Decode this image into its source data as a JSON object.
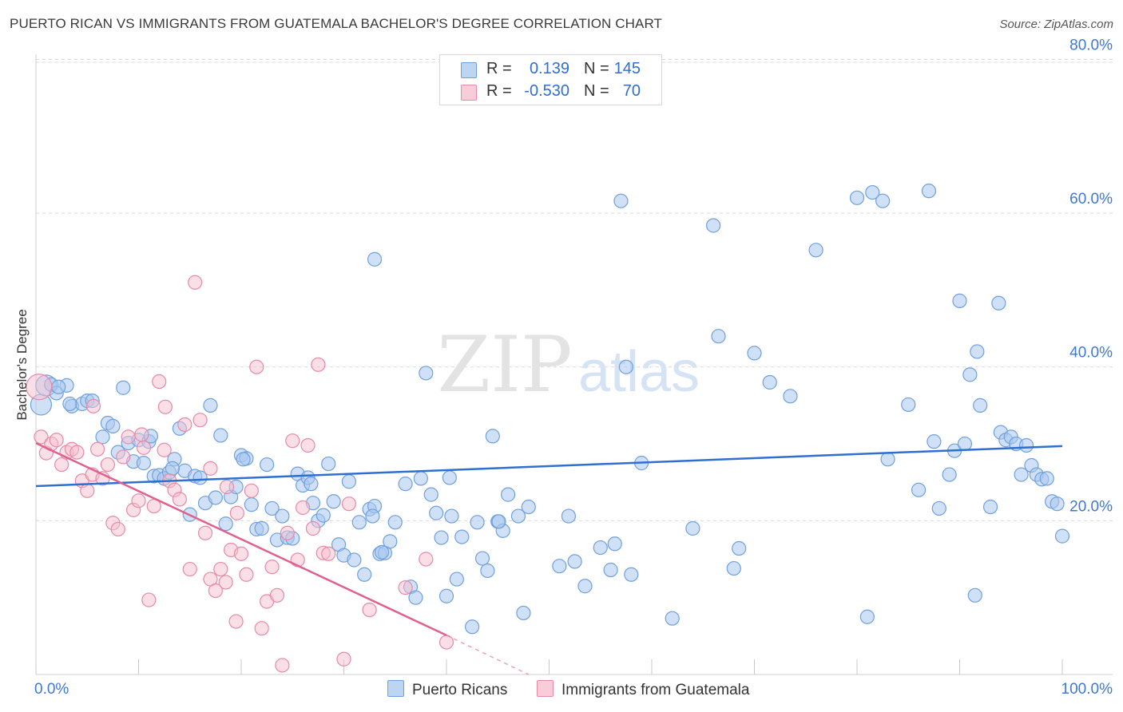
{
  "header": {
    "title": "PUERTO RICAN VS IMMIGRANTS FROM GUATEMALA BACHELOR'S DEGREE CORRELATION CHART",
    "source": "Source: ZipAtlas.com"
  },
  "legend": {
    "rows": [
      {
        "r_label": "R =",
        "r_value": "0.139",
        "n_label": "N =",
        "n_value": "145"
      },
      {
        "r_label": "R =",
        "r_value": "-0.530",
        "n_label": "N =",
        "n_value": "70"
      }
    ]
  },
  "bottom_legend": {
    "series1": "Puerto Ricans",
    "series2": "Immigrants from Guatemala"
  },
  "watermark": {
    "zip": "ZIP",
    "atlas": "atlas"
  },
  "colors": {
    "blue_fill": "#a9c8f0",
    "blue_stroke": "#6fa0de",
    "blue_line": "#2f6fd0",
    "pink_fill": "#f6bfd0",
    "pink_stroke": "#e889a8",
    "pink_line": "#e0608e",
    "grid": "#d9d9d9",
    "axis_text": "#3d78d6"
  },
  "chart_data": {
    "type": "scatter",
    "title": "PUERTO RICAN VS IMMIGRANTS FROM GUATEMALA BACHELOR'S DEGREE CORRELATION CHART",
    "xlabel": "",
    "ylabel": "Bachelor's Degree",
    "xlim": [
      0,
      100
    ],
    "ylim": [
      0,
      81.5
    ],
    "x_tick_labels": [
      "0.0%",
      "100.0%"
    ],
    "y_ticks": [
      20,
      40,
      60,
      80
    ],
    "y_tick_labels": [
      "20.0%",
      "40.0%",
      "60.0%",
      "80.0%"
    ],
    "series": [
      {
        "name": "Puerto Ricans",
        "r": 0.139,
        "n": 145,
        "trend": {
          "x": [
            0,
            100
          ],
          "y": [
            24.5,
            29.7
          ]
        },
        "points": [
          [
            0.5,
            35.1
          ],
          [
            1.0,
            37.6
          ],
          [
            1.5,
            37.7
          ],
          [
            2.0,
            36.6
          ],
          [
            3.0,
            37.6
          ],
          [
            3.5,
            34.9
          ],
          [
            4.5,
            35.2
          ],
          [
            5.0,
            35.6
          ],
          [
            5.5,
            35.6
          ],
          [
            6.5,
            30.9
          ],
          [
            7.0,
            32.7
          ],
          [
            7.5,
            32.3
          ],
          [
            8.0,
            28.9
          ],
          [
            8.5,
            37.3
          ],
          [
            9.0,
            30.1
          ],
          [
            9.5,
            27.7
          ],
          [
            10.0,
            30.5
          ],
          [
            10.5,
            27.5
          ],
          [
            11.0,
            30.3
          ],
          [
            11.5,
            25.8
          ],
          [
            12.0,
            25.9
          ],
          [
            12.5,
            25.5
          ],
          [
            13.0,
            26.3
          ],
          [
            13.5,
            28.0
          ],
          [
            14.0,
            32.0
          ],
          [
            14.5,
            26.5
          ],
          [
            15.0,
            20.8
          ],
          [
            15.5,
            25.8
          ],
          [
            16.0,
            25.6
          ],
          [
            16.5,
            22.3
          ],
          [
            17.0,
            35.0
          ],
          [
            17.5,
            23.0
          ],
          [
            18.0,
            31.1
          ],
          [
            18.5,
            19.6
          ],
          [
            19.0,
            23.1
          ],
          [
            19.5,
            24.4
          ],
          [
            20.0,
            28.5
          ],
          [
            20.5,
            28.1
          ],
          [
            21.0,
            22.1
          ],
          [
            21.5,
            18.9
          ],
          [
            22.0,
            19.0
          ],
          [
            22.5,
            27.3
          ],
          [
            23.0,
            21.6
          ],
          [
            23.5,
            17.5
          ],
          [
            24.0,
            20.6
          ],
          [
            24.5,
            17.8
          ],
          [
            25.0,
            17.7
          ],
          [
            25.5,
            26.1
          ],
          [
            26.0,
            24.6
          ],
          [
            26.5,
            25.6
          ],
          [
            27.0,
            22.3
          ],
          [
            27.5,
            20.0
          ],
          [
            28.0,
            20.7
          ],
          [
            28.5,
            27.4
          ],
          [
            29.0,
            22.5
          ],
          [
            29.5,
            16.9
          ],
          [
            30.0,
            15.5
          ],
          [
            30.5,
            25.1
          ],
          [
            31.0,
            14.9
          ],
          [
            31.5,
            19.8
          ],
          [
            32.0,
            13.0
          ],
          [
            32.5,
            21.5
          ],
          [
            33.0,
            21.9
          ],
          [
            33.5,
            15.7
          ],
          [
            34.0,
            15.8
          ],
          [
            34.5,
            17.3
          ],
          [
            35.0,
            19.8
          ],
          [
            36.0,
            24.8
          ],
          [
            36.5,
            11.4
          ],
          [
            37.0,
            10.0
          ],
          [
            37.5,
            25.5
          ],
          [
            38.0,
            39.2
          ],
          [
            38.5,
            23.4
          ],
          [
            39.0,
            21.0
          ],
          [
            39.5,
            17.8
          ],
          [
            40.0,
            10.2
          ],
          [
            40.5,
            20.6
          ],
          [
            41.0,
            12.4
          ],
          [
            41.5,
            17.9
          ],
          [
            42.5,
            6.2
          ],
          [
            43.0,
            19.8
          ],
          [
            43.5,
            15.1
          ],
          [
            44.0,
            13.5
          ],
          [
            44.5,
            31.0
          ],
          [
            45.0,
            19.9
          ],
          [
            45.5,
            18.7
          ],
          [
            46.0,
            23.4
          ],
          [
            47.0,
            20.6
          ],
          [
            47.5,
            8.0
          ],
          [
            48.0,
            21.8
          ],
          [
            51.0,
            14.1
          ],
          [
            52.5,
            14.7
          ],
          [
            53.5,
            11.5
          ],
          [
            55.0,
            16.5
          ],
          [
            56.0,
            13.6
          ],
          [
            57.0,
            61.6
          ],
          [
            57.5,
            40.0
          ],
          [
            58.0,
            13.0
          ],
          [
            59.0,
            27.5
          ],
          [
            62.0,
            7.3
          ],
          [
            64.0,
            19.0
          ],
          [
            66.0,
            58.4
          ],
          [
            66.5,
            44.0
          ],
          [
            68.0,
            13.8
          ],
          [
            68.5,
            16.4
          ],
          [
            70.0,
            41.8
          ],
          [
            71.5,
            38.0
          ],
          [
            73.5,
            36.2
          ],
          [
            76.0,
            55.2
          ],
          [
            80.0,
            62.0
          ],
          [
            81.0,
            7.5
          ],
          [
            81.5,
            62.7
          ],
          [
            82.5,
            61.6
          ],
          [
            83.0,
            28.0
          ],
          [
            85.0,
            35.1
          ],
          [
            86.0,
            24.0
          ],
          [
            87.0,
            62.9
          ],
          [
            87.5,
            30.3
          ],
          [
            88.0,
            21.6
          ],
          [
            89.0,
            26.0
          ],
          [
            89.5,
            29.1
          ],
          [
            90.0,
            48.6
          ],
          [
            90.5,
            30.0
          ],
          [
            91.0,
            39.0
          ],
          [
            91.5,
            10.3
          ],
          [
            91.7,
            42.0
          ],
          [
            92.0,
            35.0
          ],
          [
            93.0,
            21.8
          ],
          [
            93.8,
            48.3
          ],
          [
            94.0,
            31.5
          ],
          [
            94.5,
            30.5
          ],
          [
            95.0,
            30.9
          ],
          [
            95.5,
            30.0
          ],
          [
            96.0,
            26.0
          ],
          [
            96.5,
            29.8
          ],
          [
            97.0,
            27.2
          ],
          [
            97.5,
            26.0
          ],
          [
            98.0,
            25.4
          ],
          [
            98.5,
            25.5
          ],
          [
            99.0,
            22.5
          ],
          [
            99.5,
            22.2
          ],
          [
            100.0,
            18.0
          ],
          [
            2.2,
            37.4
          ],
          [
            3.3,
            35.2
          ],
          [
            11.2,
            31.0
          ],
          [
            13.3,
            26.8
          ],
          [
            20.2,
            28.0
          ],
          [
            26.8,
            24.8
          ],
          [
            32.8,
            20.6
          ],
          [
            40.3,
            25.6
          ],
          [
            33.7,
            15.9
          ],
          [
            33.0,
            54.0
          ],
          [
            45.1,
            19.9
          ],
          [
            51.9,
            20.6
          ],
          [
            56.4,
            17.0
          ]
        ]
      },
      {
        "name": "Immigrants from Guatemala",
        "r": -0.53,
        "n": 70,
        "trend": {
          "x": [
            0,
            40
          ],
          "y": [
            30.1,
            5.1
          ]
        },
        "trend_dashed": {
          "x": [
            40,
            48
          ],
          "y": [
            5.1,
            0
          ]
        },
        "points": [
          [
            0.3,
            37.4
          ],
          [
            0.5,
            30.9
          ],
          [
            1.0,
            28.8
          ],
          [
            1.5,
            30.0
          ],
          [
            2.0,
            30.5
          ],
          [
            2.5,
            27.3
          ],
          [
            3.0,
            28.9
          ],
          [
            3.5,
            29.3
          ],
          [
            4.0,
            28.9
          ],
          [
            4.5,
            25.2
          ],
          [
            5.0,
            23.9
          ],
          [
            5.5,
            26.0
          ],
          [
            6.0,
            29.3
          ],
          [
            6.5,
            25.5
          ],
          [
            7.0,
            27.3
          ],
          [
            7.5,
            19.7
          ],
          [
            8.0,
            18.9
          ],
          [
            8.5,
            28.3
          ],
          [
            9.0,
            30.9
          ],
          [
            9.5,
            21.4
          ],
          [
            10.0,
            22.6
          ],
          [
            10.5,
            29.5
          ],
          [
            11.0,
            9.7
          ],
          [
            11.5,
            21.9
          ],
          [
            12.0,
            38.1
          ],
          [
            12.5,
            29.2
          ],
          [
            13.0,
            25.2
          ],
          [
            13.5,
            24.0
          ],
          [
            14.0,
            22.8
          ],
          [
            14.5,
            32.5
          ],
          [
            15.0,
            13.7
          ],
          [
            15.5,
            51.0
          ],
          [
            16.0,
            33.1
          ],
          [
            16.5,
            18.4
          ],
          [
            17.0,
            12.4
          ],
          [
            17.5,
            10.9
          ],
          [
            18.0,
            13.7
          ],
          [
            18.5,
            12.0
          ],
          [
            19.0,
            16.2
          ],
          [
            19.5,
            6.9
          ],
          [
            20.0,
            15.7
          ],
          [
            20.5,
            13.0
          ],
          [
            21.0,
            23.9
          ],
          [
            21.5,
            40.0
          ],
          [
            22.0,
            6.0
          ],
          [
            22.5,
            9.5
          ],
          [
            23.0,
            14.0
          ],
          [
            23.5,
            10.3
          ],
          [
            24.0,
            1.2
          ],
          [
            24.5,
            18.4
          ],
          [
            25.0,
            30.4
          ],
          [
            25.5,
            14.9
          ],
          [
            26.0,
            21.7
          ],
          [
            26.5,
            29.8
          ],
          [
            27.0,
            19.0
          ],
          [
            27.5,
            40.3
          ],
          [
            28.0,
            15.8
          ],
          [
            28.5,
            15.7
          ],
          [
            30.0,
            2.0
          ],
          [
            30.5,
            22.2
          ],
          [
            32.5,
            8.4
          ],
          [
            36.0,
            11.3
          ],
          [
            38.0,
            15.0
          ],
          [
            40.0,
            4.2
          ],
          [
            5.6,
            34.9
          ],
          [
            10.3,
            31.2
          ],
          [
            12.6,
            34.8
          ],
          [
            17.0,
            26.8
          ],
          [
            18.6,
            24.4
          ],
          [
            19.6,
            21.0
          ]
        ]
      }
    ]
  }
}
